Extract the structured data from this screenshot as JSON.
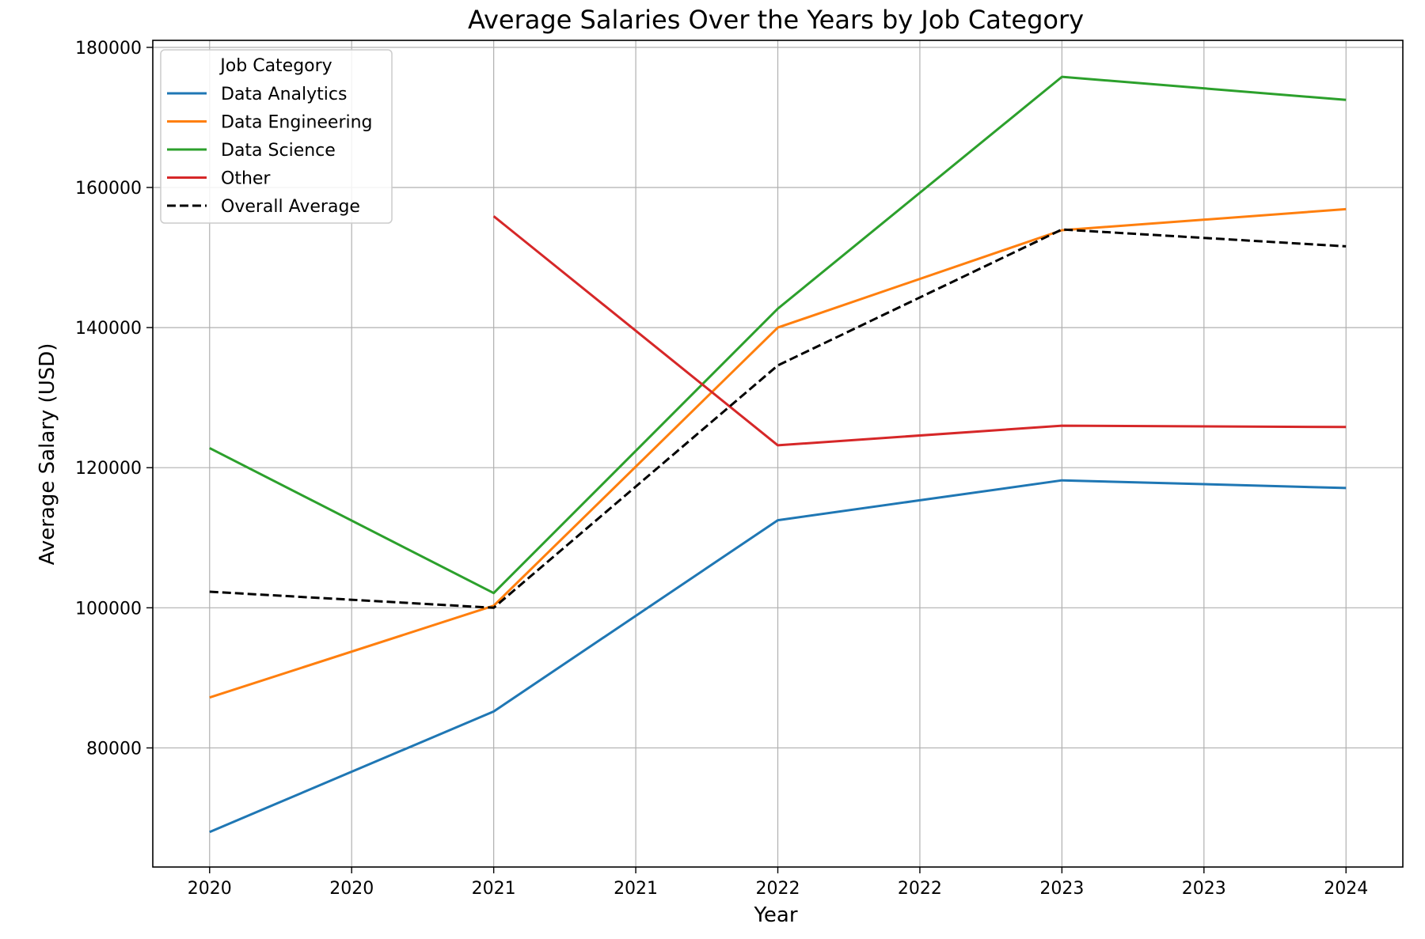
{
  "chart_data": {
    "type": "line",
    "title": "Average Salaries Over the Years by Job Category",
    "xlabel": "Year",
    "ylabel": "Average Salary (USD)",
    "x": [
      2020,
      2021,
      2022,
      2023,
      2024
    ],
    "xlim": [
      2019.8,
      2024.2
    ],
    "ylim": [
      63000,
      181000
    ],
    "xticks": [
      2020,
      2020.5,
      2021,
      2021.5,
      2022,
      2022.5,
      2023,
      2023.5,
      2024
    ],
    "xtick_labels": [
      "2020",
      "2020",
      "2021",
      "2021",
      "2022",
      "2022",
      "2023",
      "2023",
      "2024"
    ],
    "yticks": [
      80000,
      100000,
      120000,
      140000,
      160000,
      180000
    ],
    "ytick_labels": [
      "80000",
      "100000",
      "120000",
      "140000",
      "160000",
      "180000"
    ],
    "grid": true,
    "legend": {
      "title": "Job Category",
      "placement": "top-left"
    },
    "series": [
      {
        "name": "Data Analytics",
        "color": "#1f77b4",
        "dash": "solid",
        "x": [
          2020,
          2021,
          2022,
          2023,
          2024
        ],
        "values": [
          68000,
          85200,
          112500,
          118200,
          117100
        ]
      },
      {
        "name": "Data Engineering",
        "color": "#ff7f0e",
        "dash": "solid",
        "x": [
          2020,
          2021,
          2022,
          2023,
          2024
        ],
        "values": [
          87200,
          100300,
          140000,
          153900,
          156900
        ]
      },
      {
        "name": "Data Science",
        "color": "#2ca02c",
        "dash": "solid",
        "x": [
          2020,
          2021,
          2022,
          2023,
          2024
        ],
        "values": [
          122800,
          102100,
          142700,
          175800,
          172500
        ]
      },
      {
        "name": "Other",
        "color": "#d62728",
        "dash": "solid",
        "x": [
          2021,
          2022,
          2023,
          2024
        ],
        "values": [
          155900,
          123200,
          126000,
          125800
        ]
      },
      {
        "name": "Overall Average",
        "color": "#000000",
        "dash": "dashed",
        "x": [
          2020,
          2021,
          2022,
          2023,
          2024
        ],
        "values": [
          102300,
          100000,
          134600,
          154000,
          151600
        ]
      }
    ]
  }
}
